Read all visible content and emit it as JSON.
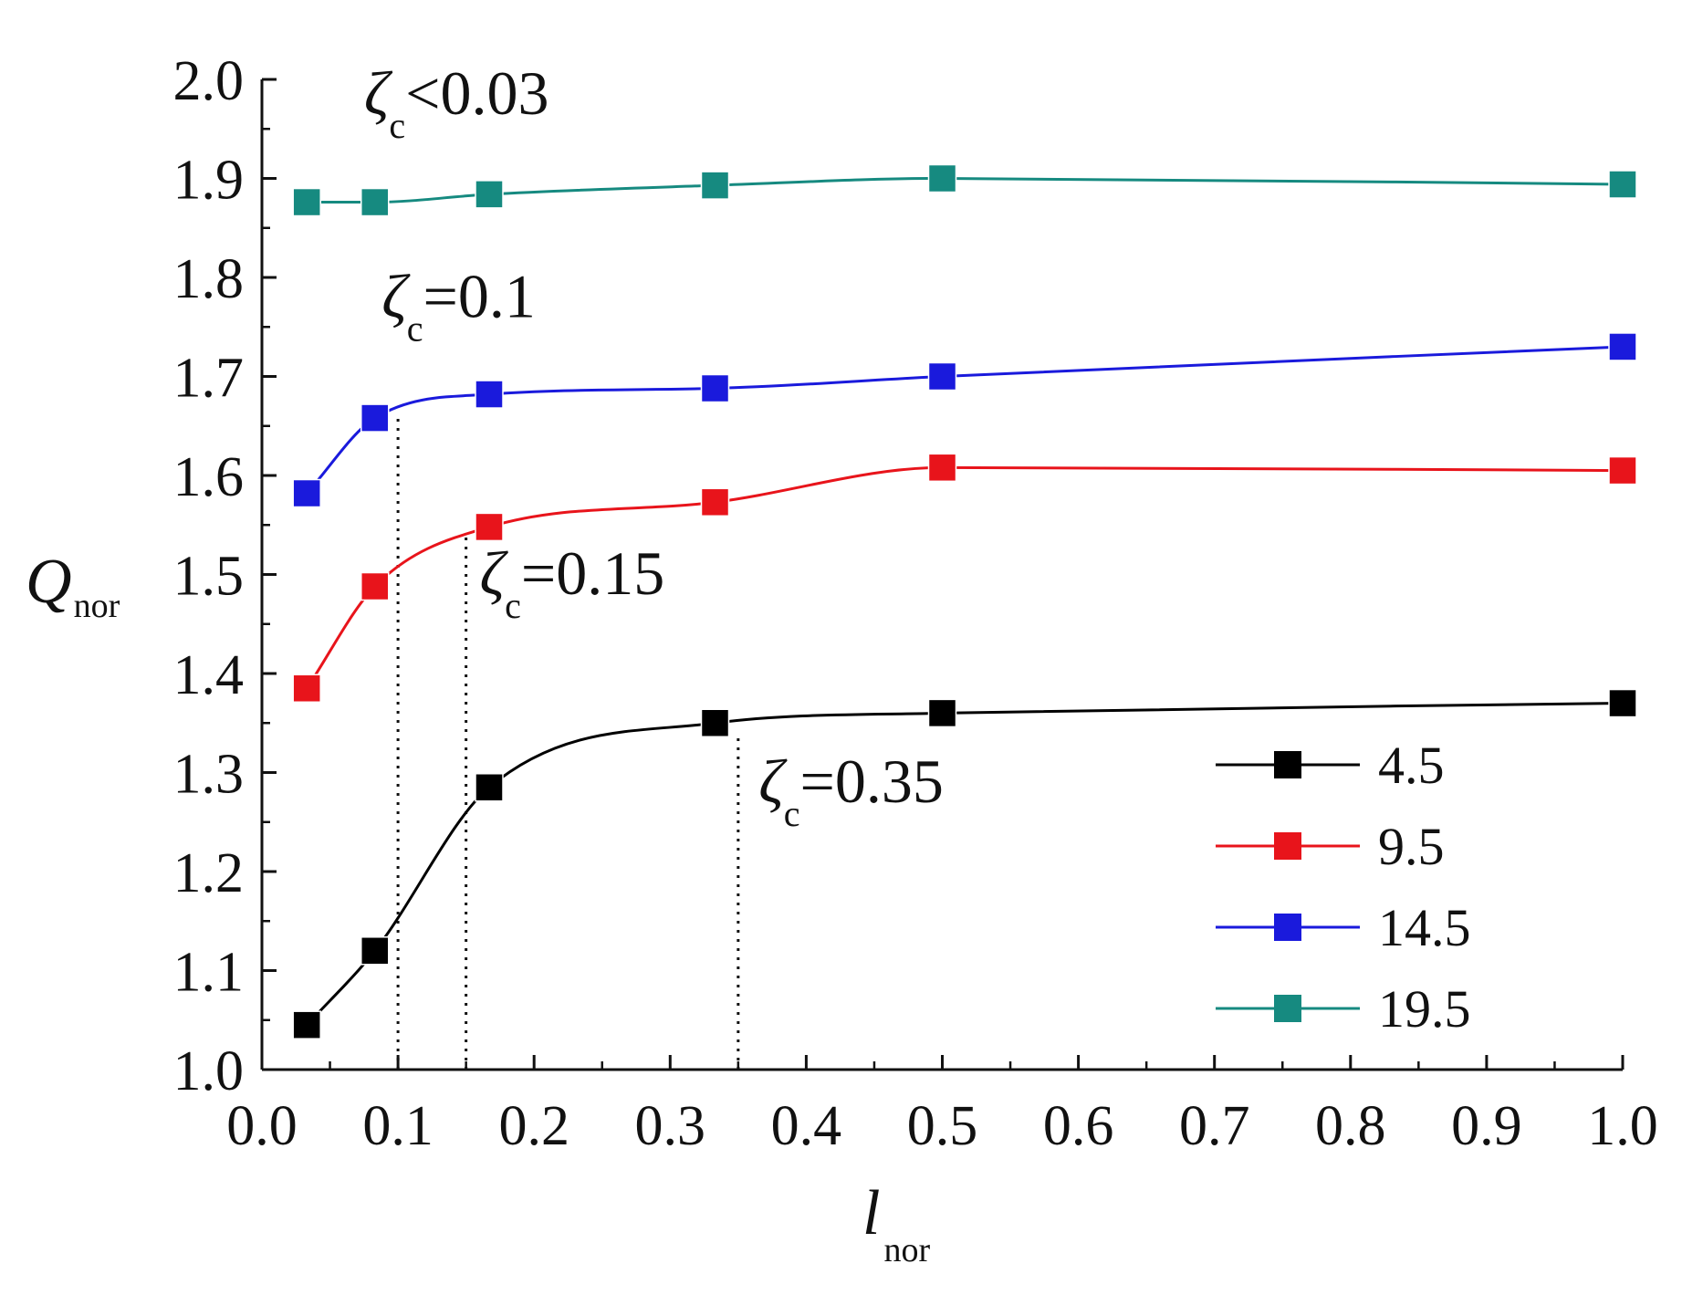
{
  "chart_data": {
    "type": "line",
    "xlabel": {
      "main": "l",
      "sub": "nor"
    },
    "ylabel": {
      "main": "Q",
      "sub": "nor"
    },
    "xlim": [
      0.0,
      1.0
    ],
    "ylim": [
      1.0,
      2.0
    ],
    "x_ticks": [
      "0.0",
      "0.1",
      "0.2",
      "0.3",
      "0.4",
      "0.5",
      "0.6",
      "0.7",
      "0.8",
      "0.9",
      "1.0"
    ],
    "y_ticks": [
      "1.0",
      "1.1",
      "1.2",
      "1.3",
      "1.4",
      "1.5",
      "1.6",
      "1.7",
      "1.8",
      "1.9",
      "2.0"
    ],
    "grid": false,
    "legend_position": "bottom-right",
    "series": [
      {
        "name": "4.5",
        "color": "#000000",
        "x": [
          0.033,
          0.083,
          0.167,
          0.333,
          0.5,
          1.0
        ],
        "y": [
          1.045,
          1.12,
          1.285,
          1.35,
          1.36,
          1.37
        ]
      },
      {
        "name": "9.5",
        "color": "#e8141b",
        "x": [
          0.033,
          0.083,
          0.167,
          0.333,
          0.5,
          1.0
        ],
        "y": [
          1.385,
          1.488,
          1.548,
          1.573,
          1.608,
          1.605
        ]
      },
      {
        "name": "14.5",
        "color": "#1a1adc",
        "x": [
          0.033,
          0.083,
          0.167,
          0.333,
          0.5,
          1.0
        ],
        "y": [
          1.582,
          1.658,
          1.682,
          1.688,
          1.7,
          1.73
        ]
      },
      {
        "name": "19.5",
        "color": "#168a80",
        "x": [
          0.033,
          0.083,
          0.167,
          0.333,
          0.5,
          1.0
        ],
        "y": [
          1.876,
          1.876,
          1.884,
          1.893,
          1.9,
          1.894
        ]
      }
    ],
    "annotations": [
      {
        "symbol": "ζ",
        "sub": "c",
        "text": "<0.03",
        "at_x": 0.075,
        "at_y": 1.965
      },
      {
        "symbol": "ζ",
        "sub": "c",
        "text": "=0.1",
        "at_x": 0.088,
        "at_y": 1.76
      },
      {
        "symbol": "ζ",
        "sub": "c",
        "text": "=0.15",
        "at_x": 0.16,
        "at_y": 1.48
      },
      {
        "symbol": "ζ",
        "sub": "c",
        "text": "=0.35",
        "at_x": 0.365,
        "at_y": 1.27
      }
    ],
    "critical_lines": [
      {
        "x": 0.1,
        "y_top": 1.66
      },
      {
        "x": 0.15,
        "y_top": 1.54
      },
      {
        "x": 0.35,
        "y_top": 1.34
      }
    ]
  }
}
